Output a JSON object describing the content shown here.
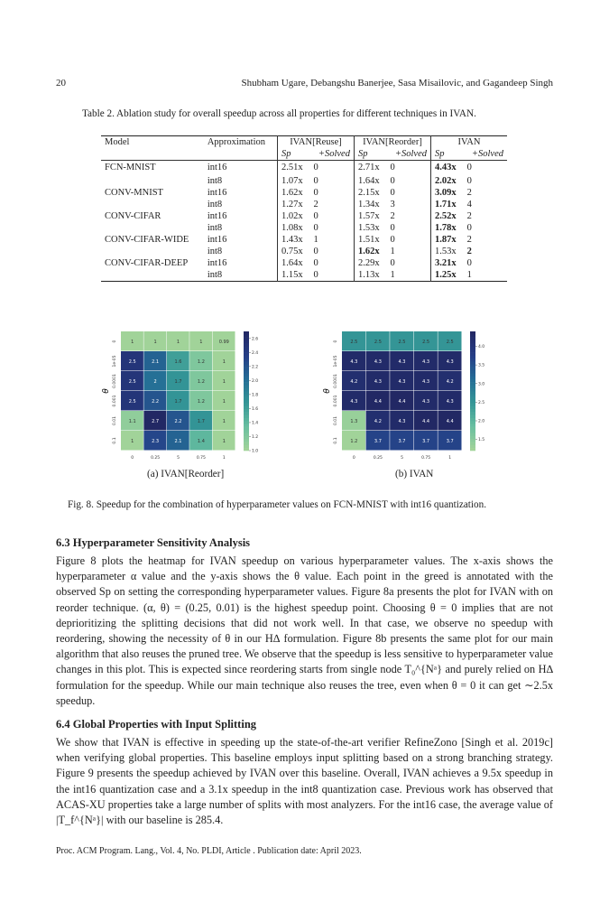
{
  "header": {
    "page_number": "20",
    "authors": "Shubham Ugare, Debangshu Banerjee, Sasa Misailovic, and Gagandeep Singh"
  },
  "table": {
    "caption": "Table 2.  Ablation study for overall speedup across all properties for different techniques in IVAN.",
    "headers": [
      "Model",
      "Approximation",
      "IVAN[Reuse]",
      "IVAN[Reorder]",
      "IVAN"
    ],
    "subheaders": [
      "Sp",
      "+Solved",
      "Sp",
      "+Solved",
      "Sp",
      "+Solved"
    ],
    "rows": [
      [
        "FCN-MNIST",
        "int16",
        "2.51x",
        "0",
        "2.71x",
        "0",
        "4.43x",
        "0"
      ],
      [
        "",
        "int8",
        "1.07x",
        "0",
        "1.64x",
        "0",
        "2.02x",
        "0"
      ],
      [
        "CONV-MNIST",
        "int16",
        "1.62x",
        "0",
        "2.15x",
        "0",
        "3.09x",
        "2"
      ],
      [
        "",
        "int8",
        "1.27x",
        "2",
        "1.34x",
        "3",
        "1.71x",
        "4"
      ],
      [
        "CONV-CIFAR",
        "int16",
        "1.02x",
        "0",
        "1.57x",
        "2",
        "2.52x",
        "2"
      ],
      [
        "",
        "int8",
        "1.08x",
        "0",
        "1.53x",
        "0",
        "1.78x",
        "0"
      ],
      [
        "CONV-CIFAR-WIDE",
        "int16",
        "1.43x",
        "1",
        "1.51x",
        "0",
        "1.87x",
        "2"
      ],
      [
        "",
        "int8",
        "0.75x",
        "0",
        "1.62x",
        "1",
        "1.53x",
        "2"
      ],
      [
        "CONV-CIFAR-DEEP",
        "int16",
        "1.64x",
        "0",
        "2.29x",
        "0",
        "3.21x",
        "0"
      ],
      [
        "",
        "int8",
        "1.15x",
        "0",
        "1.13x",
        "1",
        "1.25x",
        "1"
      ]
    ],
    "bold": [
      [
        0,
        6
      ],
      [
        1,
        6
      ],
      [
        2,
        6
      ],
      [
        3,
        6
      ],
      [
        4,
        6
      ],
      [
        5,
        6
      ],
      [
        6,
        6
      ],
      [
        7,
        4
      ],
      [
        7,
        7
      ],
      [
        8,
        6
      ],
      [
        9,
        6
      ]
    ]
  },
  "chart_data": [
    {
      "type": "heatmap",
      "subcaption": "(a) IVAN[Reorder]",
      "xlabel": "α",
      "ylabel": "θ",
      "x": [
        "0",
        "0.25",
        "5",
        "0.75",
        "1"
      ],
      "y": [
        "0",
        "1e-05",
        "0.0001",
        "0.001",
        "0.01",
        "0.1"
      ],
      "values": [
        [
          1,
          1,
          1,
          1,
          0.99
        ],
        [
          2.5,
          2.1,
          1.6,
          1.2,
          1
        ],
        [
          2.5,
          2,
          1.7,
          1.2,
          1
        ],
        [
          2.5,
          2.2,
          1.7,
          1.2,
          1
        ],
        [
          1.1,
          2.7,
          2.2,
          1.7,
          1
        ],
        [
          1,
          2.3,
          2.1,
          1.4,
          1
        ]
      ],
      "colorbar_ticks": [
        "1.0",
        "1.2",
        "1.4",
        "1.6",
        "1.8",
        "2.0",
        "2.2",
        "2.4",
        "2.6"
      ],
      "vmin": 1.0,
      "vmax": 2.7
    },
    {
      "type": "heatmap",
      "subcaption": "(b) IVAN",
      "xlabel": "α",
      "ylabel": "θ",
      "x": [
        "0",
        "0.25",
        "5",
        "0.75",
        "1"
      ],
      "y": [
        "0",
        "1e-05",
        "0.0001",
        "0.001",
        "0.01",
        "0.1"
      ],
      "values": [
        [
          2.5,
          2.5,
          2.5,
          2.5,
          2.5
        ],
        [
          4.3,
          4.3,
          4.3,
          4.3,
          4.3
        ],
        [
          4.2,
          4.3,
          4.3,
          4.3,
          4.2
        ],
        [
          4.3,
          4.4,
          4.4,
          4.3,
          4.3
        ],
        [
          1.3,
          4.2,
          4.3,
          4.4,
          4.4
        ],
        [
          1.2,
          3.7,
          3.7,
          3.7,
          3.7
        ]
      ],
      "colorbar_ticks": [
        "1.5",
        "2.0",
        "2.5",
        "3.0",
        "3.5",
        "4.0"
      ],
      "vmin": 1.2,
      "vmax": 4.4
    }
  ],
  "figure_caption": "Fig. 8.  Speedup for the combination of hyperparameter values on FCN-MNIST with int16 quantization.",
  "sec63": {
    "title": "6.3    Hyperparameter Sensitivity Analysis",
    "body": "Figure 8 plots the heatmap for IVAN speedup on various hyperparameter values. The x-axis shows the hyperparameter α value and the y-axis shows the θ value. Each point in the greed is annotated with the observed Sp on setting the corresponding hyperparameter values. Figure 8a presents the plot for IVAN with on reorder technique. (α, θ) = (0.25, 0.01) is the highest speedup point. Choosing θ = 0 implies that are not deprioritizing the splitting decisions that did not work well. In that case, we observe no speedup with reordering, showing the necessity of θ in our H∆ formulation. Figure 8b presents the same plot for our main algorithm that also reuses the pruned tree. We observe that the speedup is less sensitive to hyperparameter value changes in this plot. This is expected since reordering starts from single node T₀^{Nᵃ} and purely relied on H∆ formulation for the speedup. While our main technique also reuses the tree, even when θ = 0 it can get ∼2.5x speedup."
  },
  "sec64": {
    "title": "6.4    Global Properties with Input Splitting",
    "body": "We show that IVAN is effective in speeding up the state-of-the-art verifier RefineZono [Singh et al. 2019c] when verifying global properties. This baseline employs input splitting based on a strong branching strategy. Figure 9 presents the speedup achieved by IVAN over this baseline. Overall, IVAN achieves a 9.5x speedup in the int16 quantization case and a 3.1x speedup in the int8 quantization case. Previous work has observed that ACAS-XU properties take a large number of splits with most analyzers. For the int16 case, the average value of |T_f^{Nᵃ}| with our baseline is 285.4."
  },
  "footer": "Proc. ACM Program. Lang., Vol. 4, No. PLDI, Article . Publication date: April 2023."
}
